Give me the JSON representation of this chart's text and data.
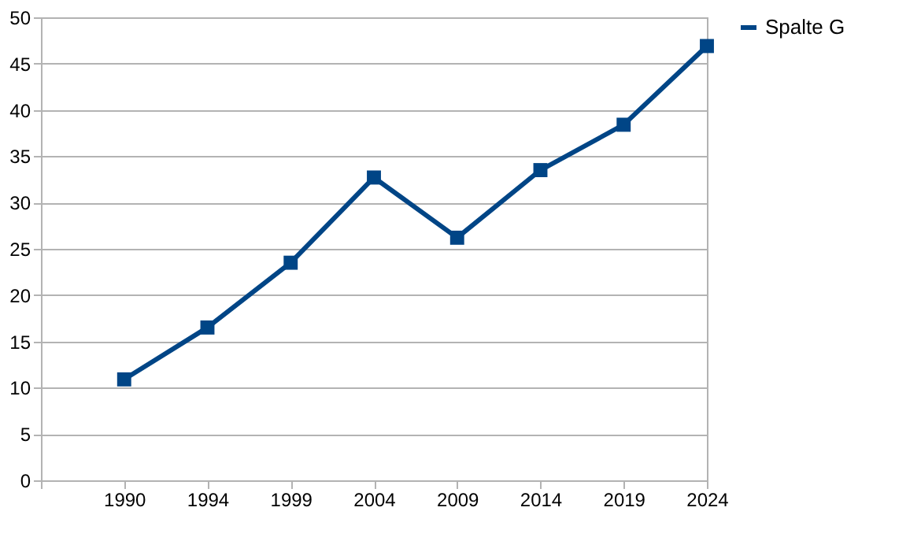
{
  "chart_data": {
    "type": "line",
    "categories": [
      null,
      "1990",
      "1994",
      "1999",
      "2004",
      "2009",
      "2014",
      "2019",
      "2024"
    ],
    "series": [
      {
        "name": "Spalte G",
        "color": "#004586",
        "values": [
          null,
          10.9,
          16.5,
          23.5,
          32.7,
          26.2,
          33.5,
          38.4,
          46.9
        ]
      }
    ],
    "ylim": [
      0,
      50
    ],
    "yticks": [
      0,
      5,
      10,
      15,
      20,
      25,
      30,
      35,
      40,
      45,
      50
    ],
    "grid": "y",
    "legend": "right",
    "marker": "square",
    "line_style": "solid"
  }
}
